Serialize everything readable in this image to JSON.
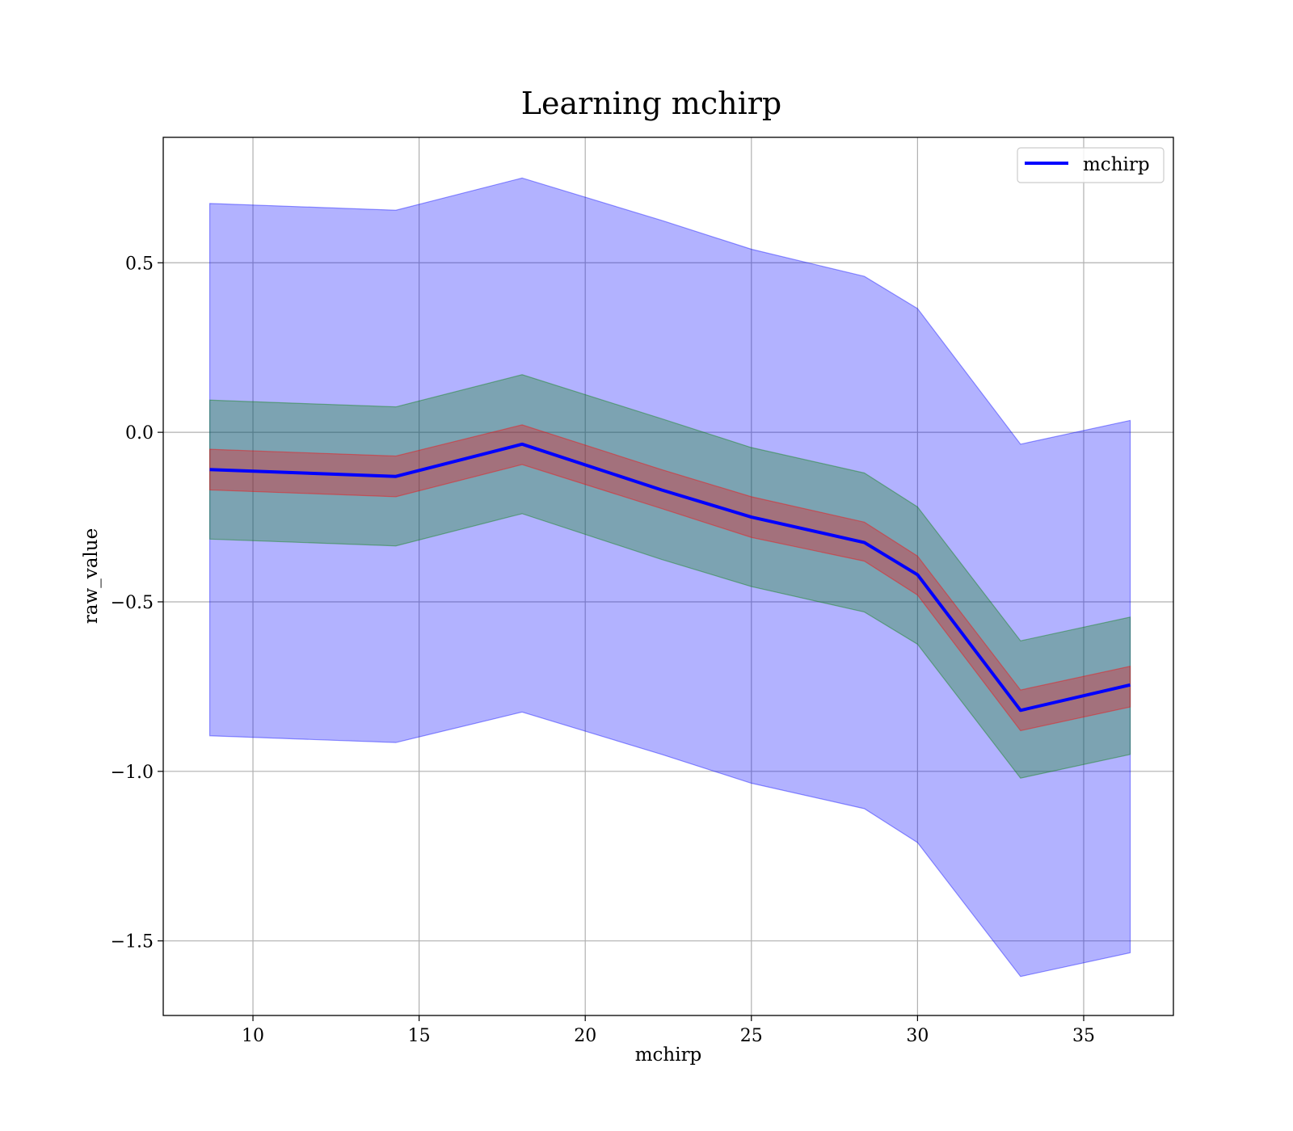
{
  "chart_data": {
    "type": "line",
    "title": "Learning mchirp",
    "xlabel": "mchirp",
    "ylabel": "raw_value",
    "xlim": [
      7.3,
      37.7
    ],
    "ylim": [
      -1.72,
      0.87
    ],
    "xticks": [
      10,
      15,
      20,
      25,
      30,
      35
    ],
    "xtick_labels": [
      "10",
      "15",
      "20",
      "25",
      "30",
      "35"
    ],
    "yticks": [
      0.5,
      0.0,
      -0.5,
      -1.0,
      -1.5
    ],
    "ytick_labels": [
      "0.5",
      "0.0",
      "−0.5",
      "−1.0",
      "−1.5"
    ],
    "grid": true,
    "legend_position": "top-right",
    "x": [
      8.7,
      14.3,
      18.1,
      22.3,
      25.0,
      28.4,
      30.0,
      33.1,
      36.4
    ],
    "series": [
      {
        "name": "mchirp",
        "values": [
          -0.11,
          -0.13,
          -0.035,
          -0.17,
          -0.25,
          -0.325,
          -0.42,
          -0.82,
          -0.745
        ]
      }
    ],
    "bands": [
      {
        "lower": [
          -0.895,
          -0.915,
          -0.825,
          -0.95,
          -1.035,
          -1.11,
          -1.21,
          -1.605,
          -1.535
        ],
        "upper": [
          0.675,
          0.655,
          0.75,
          0.625,
          0.54,
          0.46,
          0.365,
          -0.035,
          0.035
        ],
        "color": "#0000ff",
        "opacity": 0.3
      },
      {
        "lower": [
          -0.315,
          -0.335,
          -0.24,
          -0.375,
          -0.455,
          -0.53,
          -0.625,
          -1.02,
          -0.95
        ],
        "upper": [
          0.095,
          0.075,
          0.17,
          0.04,
          -0.045,
          -0.12,
          -0.22,
          -0.615,
          -0.545
        ],
        "color": "#008000",
        "opacity": 0.3
      },
      {
        "lower": [
          -0.17,
          -0.19,
          -0.095,
          -0.225,
          -0.31,
          -0.38,
          -0.48,
          -0.88,
          -0.81
        ],
        "upper": [
          -0.05,
          -0.07,
          0.022,
          -0.11,
          -0.19,
          -0.265,
          -0.365,
          -0.76,
          -0.69
        ],
        "color": "#ff0000",
        "opacity": 0.3
      }
    ],
    "line_color": "#0000ff"
  }
}
